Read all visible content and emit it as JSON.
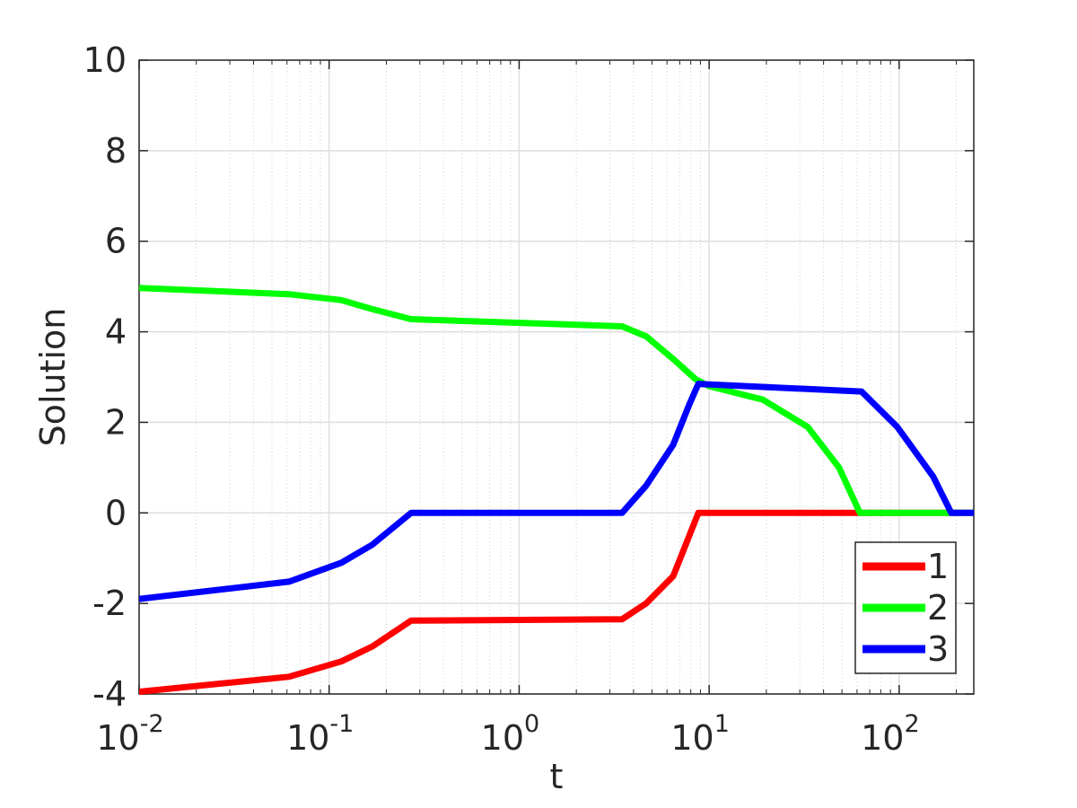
{
  "chart_data": {
    "type": "line",
    "xlabel": "t",
    "ylabel": "Solution",
    "xscale": "log",
    "grid": true,
    "minor_grid": true,
    "legend_loc": "lower right",
    "xlim": [
      0.01,
      247
    ],
    "ylim": [
      -4,
      10
    ],
    "xticks": [
      {
        "value": 0.01,
        "label": "10",
        "exponent": "-2"
      },
      {
        "value": 0.1,
        "label": "10",
        "exponent": "-1"
      },
      {
        "value": 1,
        "label": "10",
        "exponent": "0"
      },
      {
        "value": 10,
        "label": "10",
        "exponent": "1"
      },
      {
        "value": 100,
        "label": "10",
        "exponent": "2"
      }
    ],
    "yticks": [
      -4,
      -2,
      0,
      2,
      4,
      6,
      8,
      10
    ],
    "series": [
      {
        "name": "1",
        "color": "#ff0000",
        "x": [
          0.01,
          0.0615,
          0.116,
          0.169,
          0.27,
          3.48,
          4.66,
          6.46,
          7.87,
          8.77,
          247
        ],
        "values": [
          -3.95,
          -3.62,
          -3.28,
          -2.95,
          -2.38,
          -2.35,
          -2.0,
          -1.4,
          -0.5,
          0,
          0
        ]
      },
      {
        "name": "2",
        "color": "#00ff00",
        "x": [
          0.01,
          0.0615,
          0.116,
          0.169,
          0.27,
          3.48,
          4.66,
          6.46,
          8.5,
          10,
          19.2,
          33,
          48.3,
          62.1,
          247
        ],
        "values": [
          4.97,
          4.83,
          4.7,
          4.5,
          4.28,
          4.12,
          3.9,
          3.4,
          2.95,
          2.8,
          2.5,
          1.9,
          1.0,
          0,
          0
        ]
      },
      {
        "name": "3",
        "color": "#0000ff",
        "x": [
          0.01,
          0.0615,
          0.116,
          0.169,
          0.27,
          3.48,
          4.66,
          6.46,
          7.87,
          8.77,
          63.4,
          97.7,
          151,
          188,
          247
        ],
        "values": [
          -1.9,
          -1.52,
          -1.1,
          -0.7,
          0,
          0,
          0.6,
          1.5,
          2.4,
          2.85,
          2.68,
          1.9,
          0.8,
          0,
          0
        ]
      }
    ]
  }
}
